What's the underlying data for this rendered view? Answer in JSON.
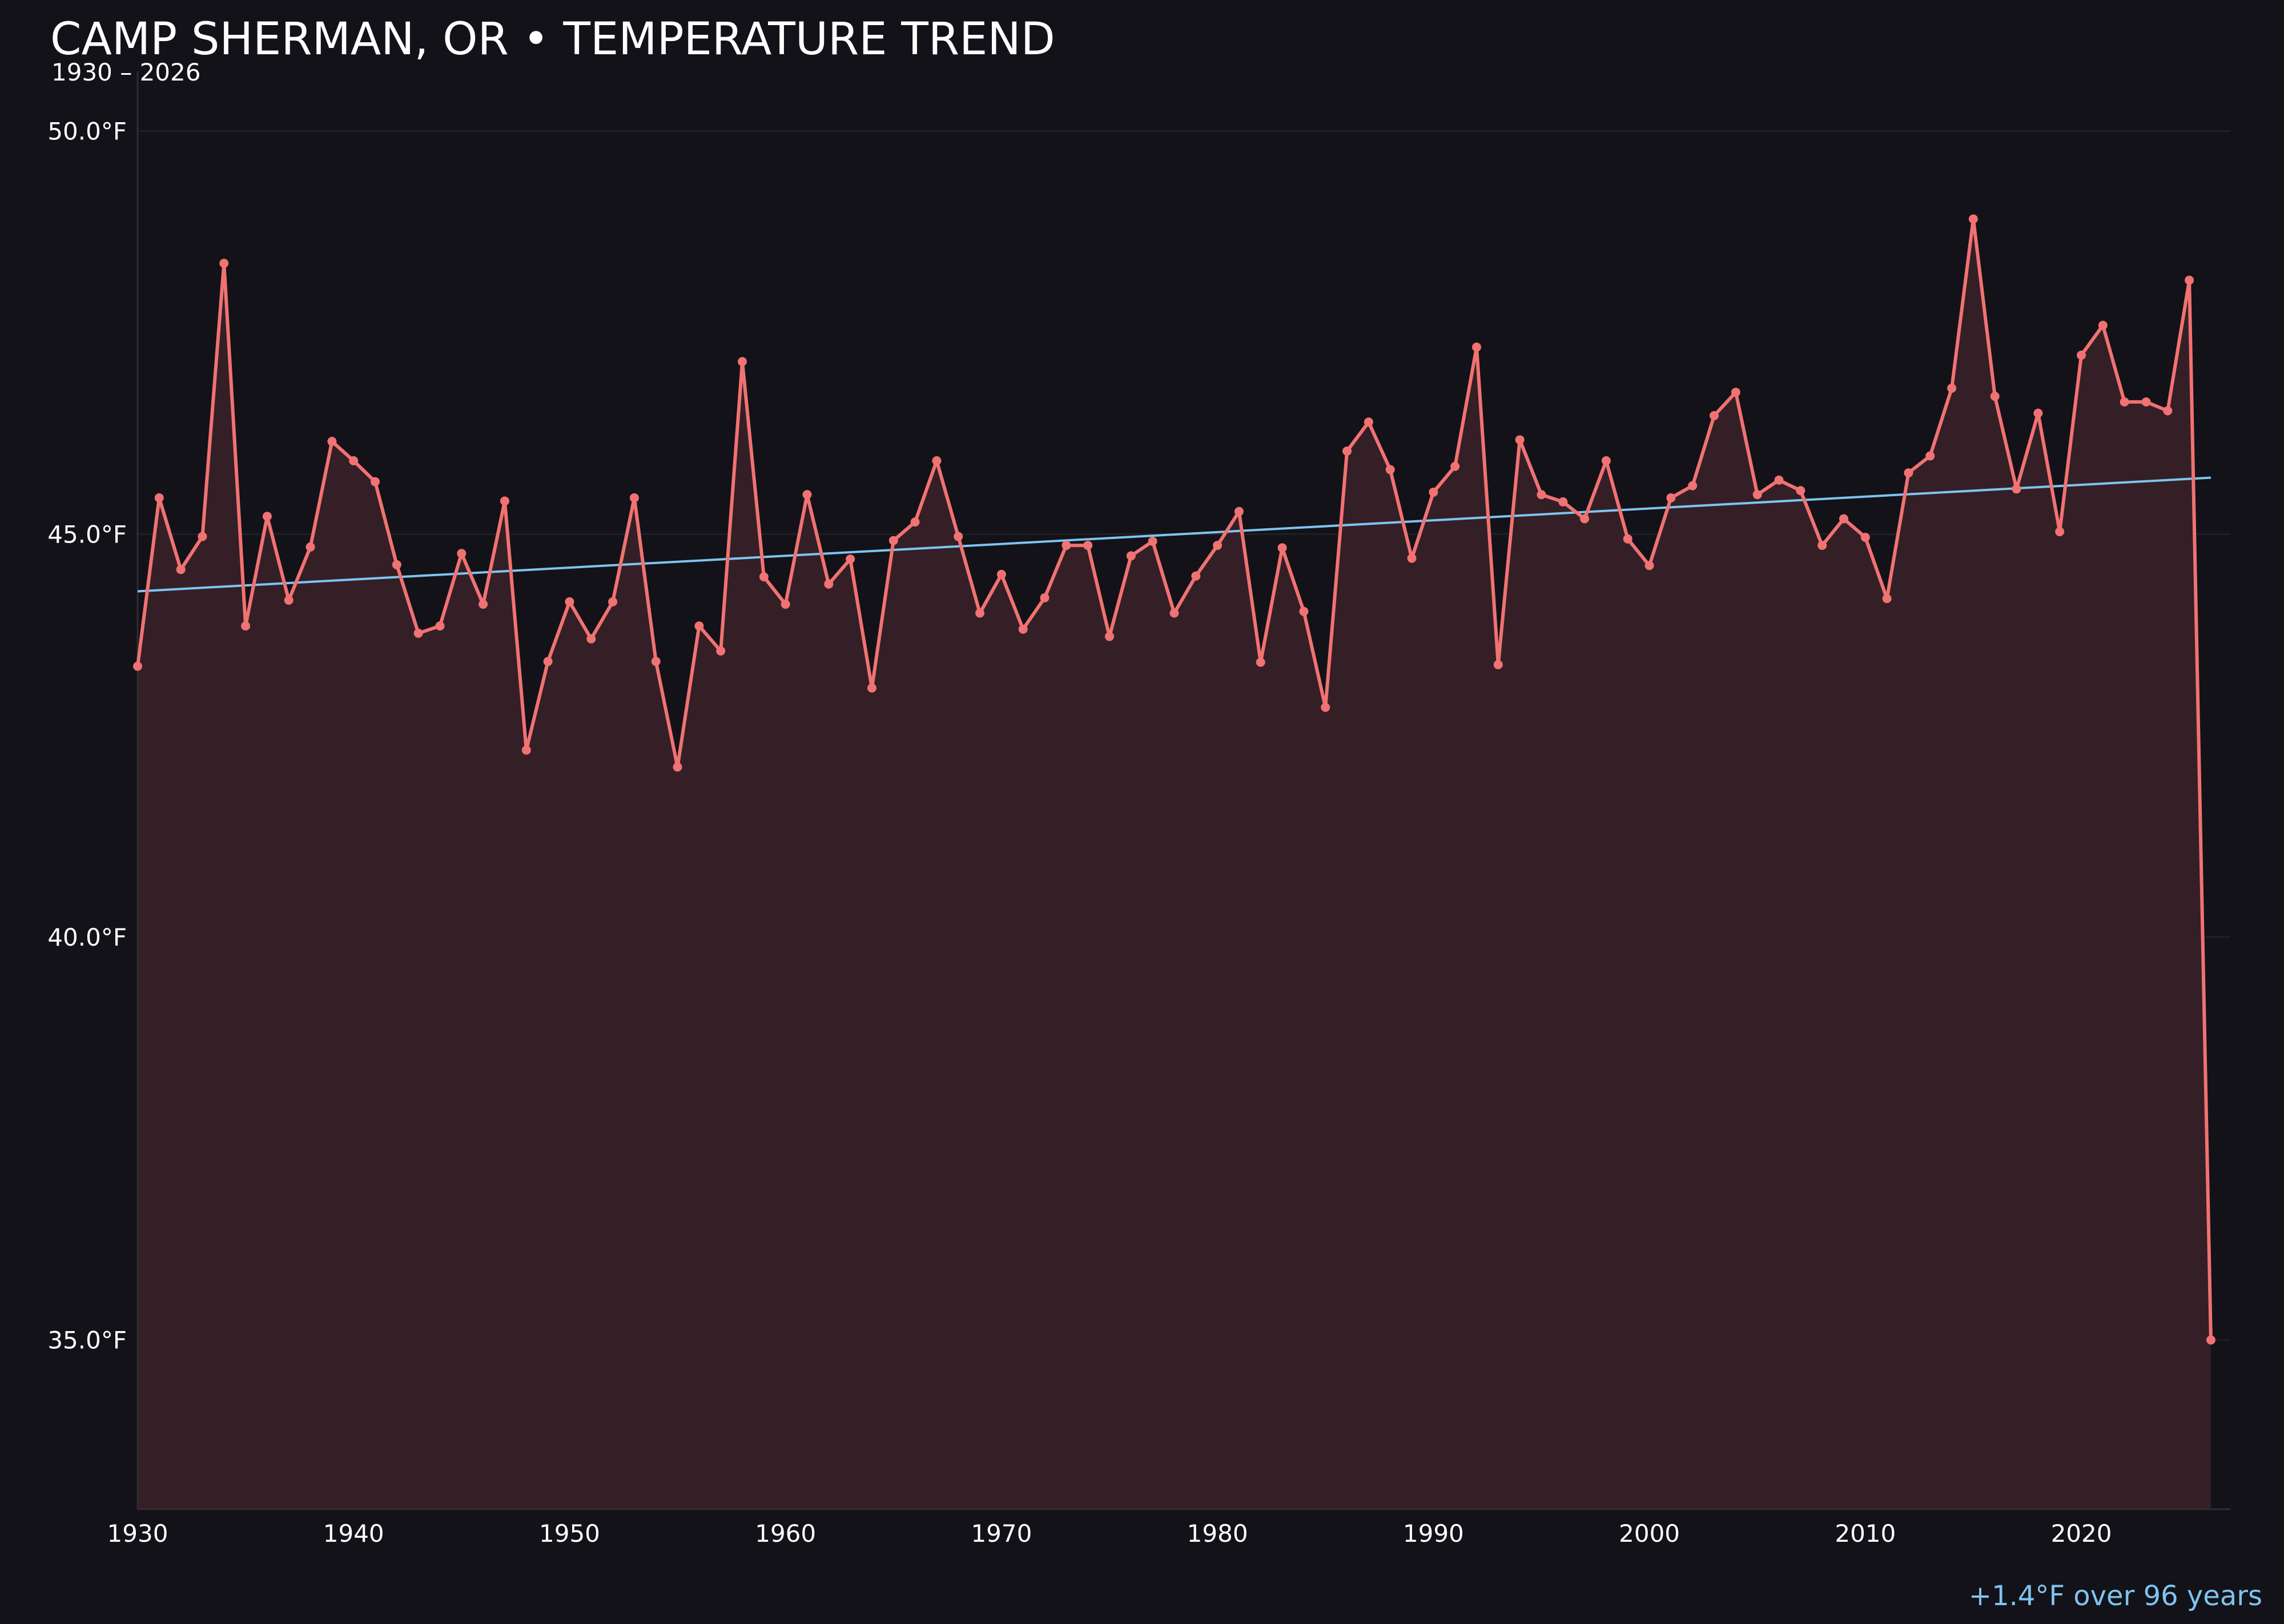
{
  "chart_data": {
    "type": "line",
    "title": "CAMP SHERMAN, OR • TEMPERATURE TREND",
    "subtitle": "1930 – 2026",
    "ylim": [
      32.9,
      50.6
    ],
    "xlim": [
      1930,
      2026.9
    ],
    "yticks": [
      {
        "value": 35.0,
        "label": "35.0°F"
      },
      {
        "value": 40.0,
        "label": "40.0°F"
      },
      {
        "value": 45.0,
        "label": "45.0°F"
      },
      {
        "value": 50.0,
        "label": "50.0°F"
      }
    ],
    "xticks": [
      {
        "value": 1930,
        "label": "1930"
      },
      {
        "value": 1940,
        "label": "1940"
      },
      {
        "value": 1950,
        "label": "1950"
      },
      {
        "value": 1960,
        "label": "1960"
      },
      {
        "value": 1970,
        "label": "1970"
      },
      {
        "value": 1980,
        "label": "1980"
      },
      {
        "value": 1990,
        "label": "1990"
      },
      {
        "value": 2000,
        "label": "2000"
      },
      {
        "value": 2010,
        "label": "2010"
      },
      {
        "value": 2020,
        "label": "2020"
      }
    ],
    "grid": true,
    "series": [
      {
        "color": "#f07272",
        "fill": "#341f26",
        "x": [
          1930,
          1931,
          1932,
          1933,
          1934,
          1935,
          1936,
          1937,
          1938,
          1939,
          1940,
          1941,
          1942,
          1943,
          1944,
          1945,
          1946,
          1947,
          1948,
          1949,
          1950,
          1951,
          1952,
          1953,
          1954,
          1955,
          1956,
          1957,
          1958,
          1959,
          1960,
          1961,
          1962,
          1963,
          1964,
          1965,
          1966,
          1967,
          1968,
          1969,
          1970,
          1971,
          1972,
          1973,
          1974,
          1975,
          1976,
          1977,
          1978,
          1979,
          1980,
          1981,
          1982,
          1983,
          1984,
          1985,
          1986,
          1987,
          1988,
          1989,
          1990,
          1991,
          1992,
          1993,
          1994,
          1995,
          1996,
          1997,
          1998,
          1999,
          2000,
          2001,
          2002,
          2003,
          2004,
          2005,
          2006,
          2007,
          2008,
          2009,
          2010,
          2011,
          2012,
          2013,
          2014,
          2015,
          2016,
          2017,
          2018,
          2019,
          2020,
          2021,
          2022,
          2023,
          2024,
          2025,
          2026
        ],
        "values": [
          43.36,
          45.45,
          44.56,
          44.97,
          48.36,
          43.86,
          45.22,
          44.18,
          44.84,
          46.15,
          45.91,
          45.65,
          44.62,
          43.77,
          43.86,
          44.76,
          44.13,
          45.41,
          42.32,
          43.42,
          44.16,
          43.7,
          44.16,
          45.45,
          43.42,
          42.11,
          43.86,
          43.55,
          47.14,
          44.47,
          44.13,
          45.49,
          44.38,
          44.69,
          43.09,
          44.92,
          45.15,
          45.91,
          44.97,
          44.02,
          44.5,
          43.82,
          44.21,
          44.86,
          44.86,
          43.73,
          44.73,
          44.91,
          44.02,
          44.48,
          44.86,
          45.28,
          43.41,
          44.83,
          44.04,
          42.85,
          46.03,
          46.39,
          45.8,
          44.7,
          45.52,
          45.84,
          47.32,
          43.38,
          46.17,
          45.49,
          45.4,
          45.19,
          45.91,
          44.94,
          44.61,
          45.45,
          45.6,
          46.47,
          46.76,
          45.49,
          45.67,
          45.54,
          44.86,
          45.19,
          44.96,
          44.2,
          45.76,
          45.97,
          46.81,
          48.91,
          46.71,
          45.56,
          46.5,
          45.03,
          47.22,
          47.59,
          46.64,
          46.64,
          46.53,
          48.15,
          35.0
        ]
      }
    ],
    "trend": {
      "color": "#7ec4f0",
      "x": [
        1930,
        2026
      ],
      "values": [
        44.29,
        45.7
      ]
    },
    "annotation": {
      "text": "+1.4°F over 96 years",
      "color": "#7ec4f0"
    },
    "colors": {
      "background": "#131218",
      "text": "#ffffff",
      "grid": "#211f26",
      "axis": "#2e2c34"
    }
  }
}
